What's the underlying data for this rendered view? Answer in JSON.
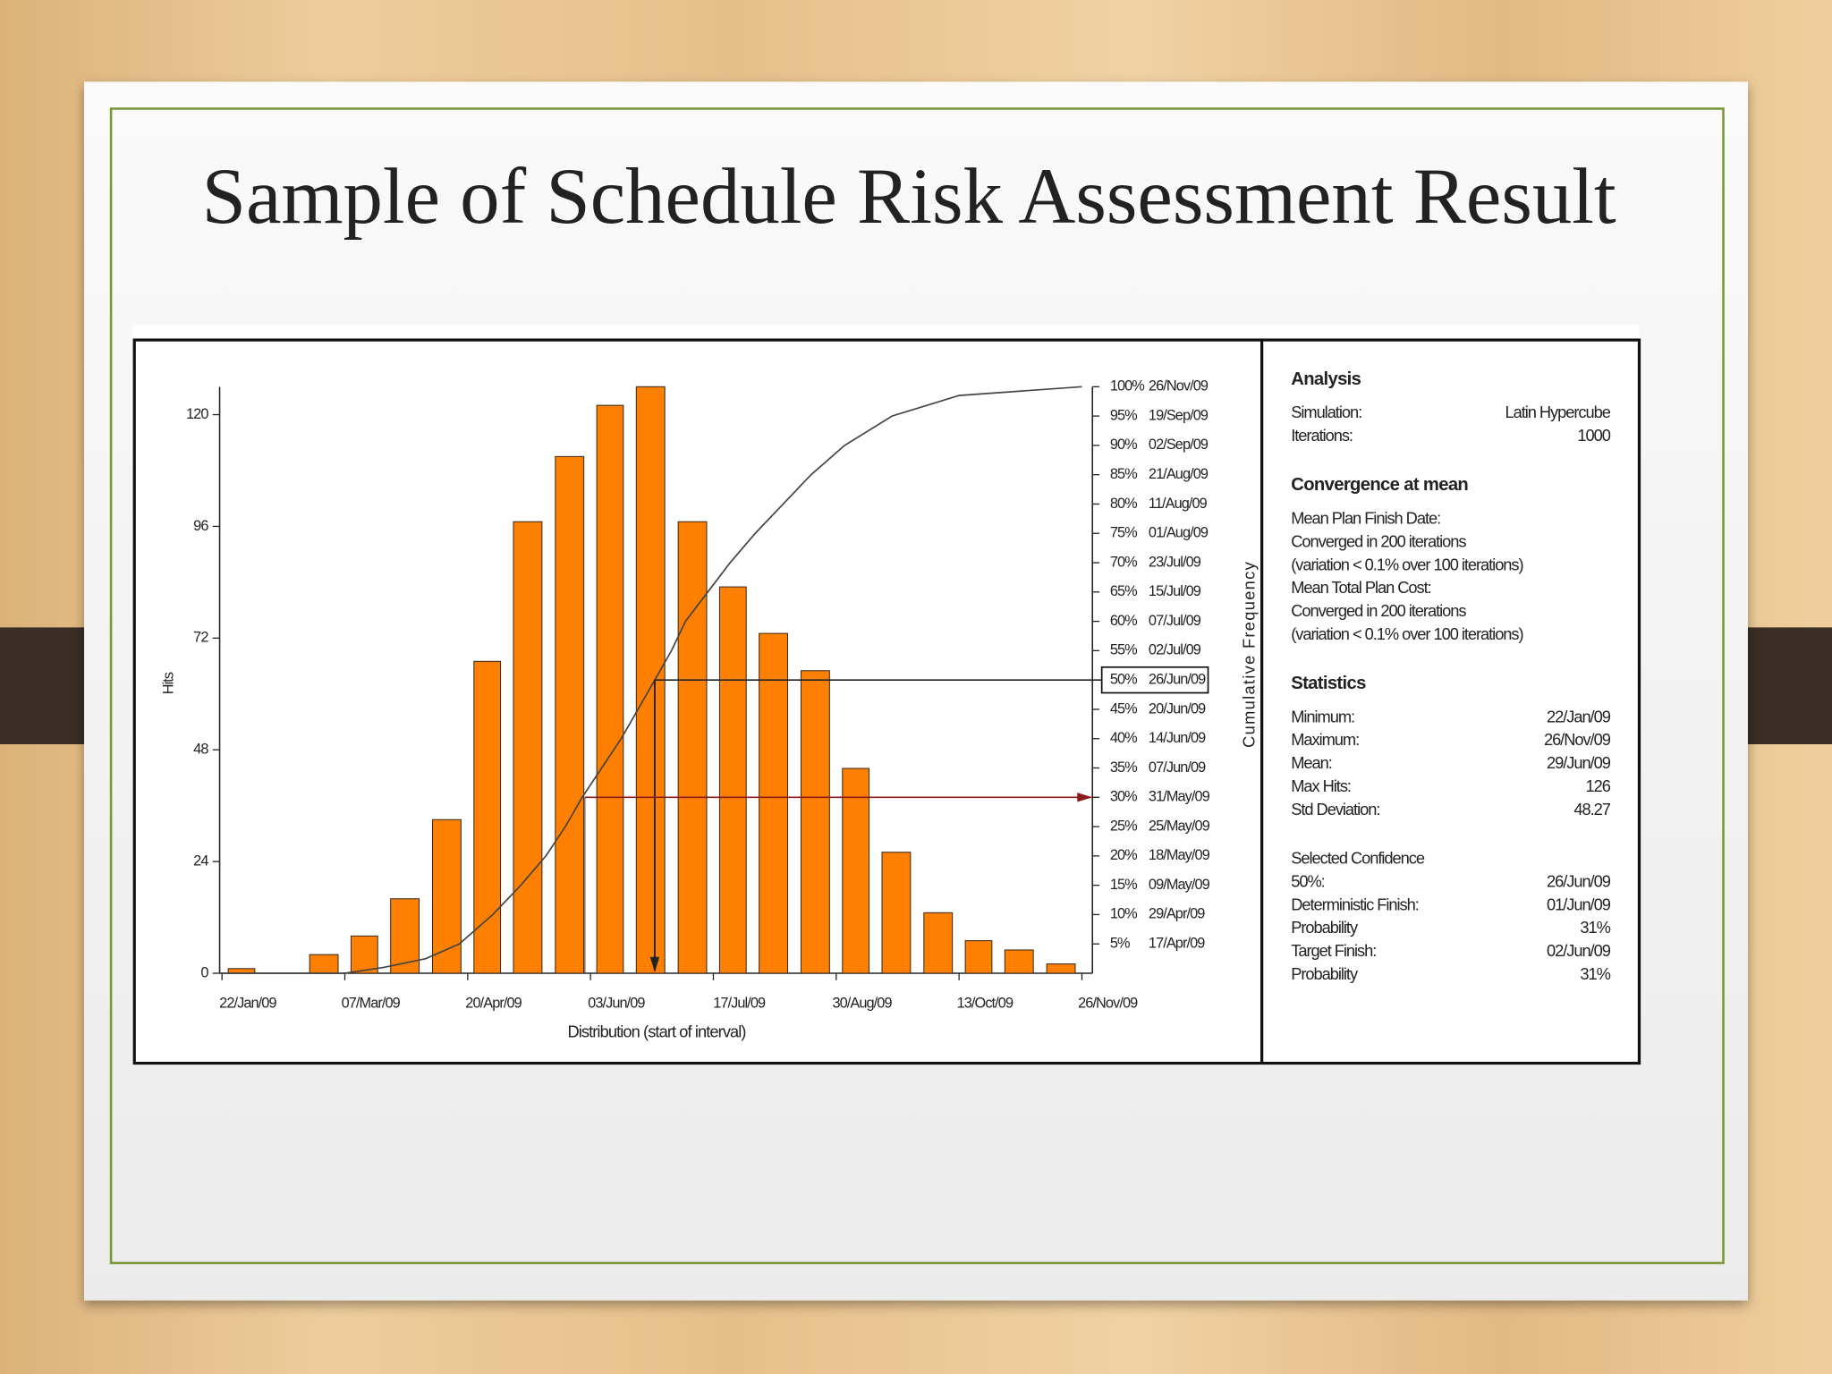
{
  "slide": {
    "title": "Sample of Schedule Risk Assessment Result"
  },
  "chart_data": {
    "type": "histogram",
    "ylabel": "Hits",
    "xlabel": "Distribution (start of interval)",
    "y2label": "Cumulative Frequency",
    "bins": [
      "2009-01-22",
      "2009-02-05",
      "2009-02-20",
      "2009-03-07",
      "2009-03-21",
      "2009-04-05",
      "2009-04-20",
      "2009-05-04",
      "2009-05-19",
      "2009-06-03",
      "2009-06-17",
      "2009-07-02",
      "2009-07-17",
      "2009-07-31",
      "2009-08-15",
      "2009-08-30",
      "2009-09-13",
      "2009-09-28",
      "2009-10-13",
      "2009-10-27",
      "2009-11-11",
      "2009-11-26"
    ],
    "values": [
      1,
      0,
      4,
      8,
      16,
      33,
      67,
      97,
      111,
      122,
      126,
      97,
      83,
      73,
      65,
      44,
      26,
      13,
      7,
      5,
      2
    ],
    "color": "#ff8000",
    "edge_color": "#3a2a1a",
    "xlim": [
      "2009-01-22",
      "2009-11-26"
    ],
    "xticks": [
      {
        "value": "2009-01-22",
        "label": "22/Jan/09"
      },
      {
        "value": "2009-03-07",
        "label": "07/Mar/09"
      },
      {
        "value": "2009-04-20",
        "label": "20/Apr/09"
      },
      {
        "value": "2009-06-03",
        "label": "03/Jun/09"
      },
      {
        "value": "2009-07-17",
        "label": "17/Jul/09"
      },
      {
        "value": "2009-08-30",
        "label": "30/Aug/09"
      },
      {
        "value": "2009-10-13",
        "label": "13/Oct/09"
      },
      {
        "value": "2009-11-26",
        "label": "26/Nov/09"
      }
    ],
    "ylim": [
      0,
      126
    ],
    "yticks": [
      0,
      24,
      48,
      72,
      96,
      120
    ],
    "y2lim": [
      0,
      100
    ],
    "y2ticks": [
      {
        "value": 100,
        "label": "100%"
      },
      {
        "value": 95,
        "label": "95%"
      },
      {
        "value": 90,
        "label": "90%"
      },
      {
        "value": 85,
        "label": "85%"
      },
      {
        "value": 80,
        "label": "80%"
      },
      {
        "value": 75,
        "label": "75%"
      },
      {
        "value": 70,
        "label": "70%"
      },
      {
        "value": 65,
        "label": "65%"
      },
      {
        "value": 60,
        "label": "60%"
      },
      {
        "value": 55,
        "label": "55%"
      },
      {
        "value": 50,
        "label": "50%"
      },
      {
        "value": 45,
        "label": "45%"
      },
      {
        "value": 40,
        "label": "40%"
      },
      {
        "value": 35,
        "label": "35%"
      },
      {
        "value": 30,
        "label": "30%"
      },
      {
        "value": 25,
        "label": "25%"
      },
      {
        "value": 20,
        "label": "20%"
      },
      {
        "value": 15,
        "label": "15%"
      },
      {
        "value": 10,
        "label": "10%"
      },
      {
        "value": 5,
        "label": "5%"
      }
    ],
    "y2tick_dates": [
      "26/Nov/09",
      "19/Sep/09",
      "02/Sep/09",
      "21/Aug/09",
      "11/Aug/09",
      "01/Aug/09",
      "23/Jul/09",
      "15/Jul/09",
      "07/Jul/09",
      "02/Jul/09",
      "26/Jun/09",
      "20/Jun/09",
      "14/Jun/09",
      "07/Jun/09",
      "31/May/09",
      "25/May/09",
      "18/May/09",
      "09/May/09",
      "29/Apr/09",
      "17/Apr/09"
    ],
    "highlight_y2tick": 10,
    "series": [
      {
        "type": "line",
        "axis": "y2",
        "color": "#444444",
        "x": [
          "2009-01-22",
          "2009-03-07",
          "2009-03-21",
          "2009-04-05",
          "2009-04-17",
          "2009-04-29",
          "2009-05-09",
          "2009-05-18",
          "2009-05-25",
          "2009-05-31",
          "2009-06-07",
          "2009-06-14",
          "2009-06-20",
          "2009-06-26",
          "2009-07-02",
          "2009-07-07",
          "2009-07-15",
          "2009-07-23",
          "2009-08-01",
          "2009-08-11",
          "2009-08-21",
          "2009-09-02",
          "2009-09-19",
          "2009-10-13",
          "2009-11-26"
        ],
        "values": [
          0,
          0,
          1,
          2.5,
          5,
          10,
          15,
          20,
          25,
          30,
          35,
          40,
          45,
          50,
          55,
          60,
          65,
          70,
          75,
          80,
          85,
          90,
          95,
          98.5,
          100
        ]
      }
    ],
    "guides": [
      {
        "x": "2009-06-26",
        "y2": 50,
        "color": "#222222",
        "arrow": "down"
      },
      {
        "x": "2009-06-01",
        "y2": 30,
        "color": "#8b1a1a",
        "arrow": "right"
      }
    ]
  },
  "panel": {
    "sections": [
      {
        "heading": "Analysis",
        "rows": [
          [
            "Simulation:",
            "Latin Hypercube"
          ],
          [
            "Iterations:",
            "1000"
          ]
        ]
      },
      {
        "heading": "Convergence at mean",
        "rows": [
          [
            "Mean Plan Finish Date:"
          ],
          [
            "Converged in 200 iterations"
          ],
          [
            "(variation < 0.1% over 100 iterations)"
          ],
          [
            "Mean Total Plan Cost:"
          ],
          [
            "Converged in 200 iterations"
          ],
          [
            "(variation < 0.1% over 100 iterations)"
          ]
        ]
      },
      {
        "heading": "Statistics",
        "rows": [
          [
            "Minimum:",
            "22/Jan/09"
          ],
          [
            "Maximum:",
            "26/Nov/09"
          ],
          [
            "Mean:",
            "29/Jun/09"
          ],
          [
            "Max Hits:",
            "126"
          ],
          [
            "Std Deviation:",
            "48.27"
          ]
        ]
      },
      {
        "subheading": "Selected Confidence",
        "rows": [
          [
            "50%:",
            "26/Jun/09"
          ],
          [
            "Deterministic Finish:",
            "01/Jun/09"
          ],
          [
            "Probability",
            "31%"
          ],
          [
            "Target Finish:",
            "02/Jun/09"
          ],
          [
            "Probability",
            "31%"
          ]
        ]
      }
    ]
  }
}
